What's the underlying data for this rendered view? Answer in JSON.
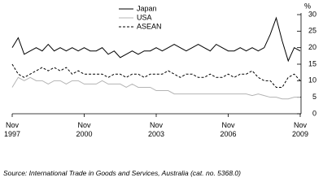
{
  "chart_data": {
    "type": "line",
    "ylabel": "%",
    "source": "Source: International Trade in Goods and Services, Australia (cat. no. 5368.0)",
    "x": [
      "1997-11",
      "1998-02",
      "1998-05",
      "1998-08",
      "1998-11",
      "1999-02",
      "1999-05",
      "1999-08",
      "1999-11",
      "2000-02",
      "2000-05",
      "2000-08",
      "2000-11",
      "2001-02",
      "2001-05",
      "2001-08",
      "2001-11",
      "2002-02",
      "2002-05",
      "2002-08",
      "2002-11",
      "2003-02",
      "2003-05",
      "2003-08",
      "2003-11",
      "2004-02",
      "2004-05",
      "2004-08",
      "2004-11",
      "2005-02",
      "2005-05",
      "2005-08",
      "2005-11",
      "2006-02",
      "2006-05",
      "2006-08",
      "2006-11",
      "2007-02",
      "2007-05",
      "2007-08",
      "2007-11",
      "2008-02",
      "2008-05",
      "2008-08",
      "2008-11",
      "2009-02",
      "2009-05",
      "2009-08",
      "2009-11"
    ],
    "series": [
      {
        "name": "Japan",
        "color": "#000000",
        "dash": false,
        "values": [
          20,
          23,
          18,
          19,
          20,
          19,
          21,
          19,
          20,
          19,
          20,
          19,
          20,
          19,
          19,
          20,
          18,
          19,
          17,
          18,
          19,
          18,
          19,
          19,
          20,
          19,
          20,
          21,
          20,
          19,
          20,
          21,
          20,
          19,
          21,
          20,
          19,
          19,
          20,
          19,
          20,
          19,
          20,
          24,
          29,
          22,
          16,
          20,
          19
        ]
      },
      {
        "name": "USA",
        "color": "#b4b4b4",
        "dash": false,
        "values": [
          8,
          11,
          10,
          11,
          10,
          10,
          9,
          10,
          10,
          9,
          10,
          10,
          9,
          9,
          9,
          10,
          9,
          9,
          9,
          8,
          9,
          8,
          8,
          8,
          7,
          7,
          7,
          6,
          6,
          6,
          6,
          6,
          6,
          6,
          6,
          6,
          6,
          6,
          6,
          6,
          5.5,
          6,
          5.5,
          5,
          5,
          4.5,
          4.5,
          5,
          5
        ]
      },
      {
        "name": "ASEAN",
        "color": "#000000",
        "dash": true,
        "values": [
          15,
          12,
          11,
          12,
          13,
          14,
          13,
          14,
          13,
          14,
          12,
          13,
          12,
          12,
          12,
          12,
          11,
          12,
          12,
          11,
          12,
          12,
          11,
          12,
          12,
          12,
          13,
          12,
          11,
          12,
          12,
          11,
          11,
          12,
          11,
          11,
          12,
          11,
          12,
          12,
          13,
          11,
          10,
          10,
          8,
          8,
          11,
          12,
          10
        ]
      }
    ],
    "xlim": [
      "1997-11",
      "2009-11"
    ],
    "xticks": [
      {
        "value": "1997-11",
        "label": "Nov 1997"
      },
      {
        "value": "2000-11",
        "label": "Nov 2000"
      },
      {
        "value": "2003-11",
        "label": "Nov 2003"
      },
      {
        "value": "2006-11",
        "label": "Nov 2006"
      },
      {
        "value": "2009-11",
        "label": "Nov 2009"
      }
    ],
    "ylim": [
      0,
      30
    ],
    "yticks": [
      0,
      5,
      10,
      15,
      20,
      25,
      30
    ]
  }
}
